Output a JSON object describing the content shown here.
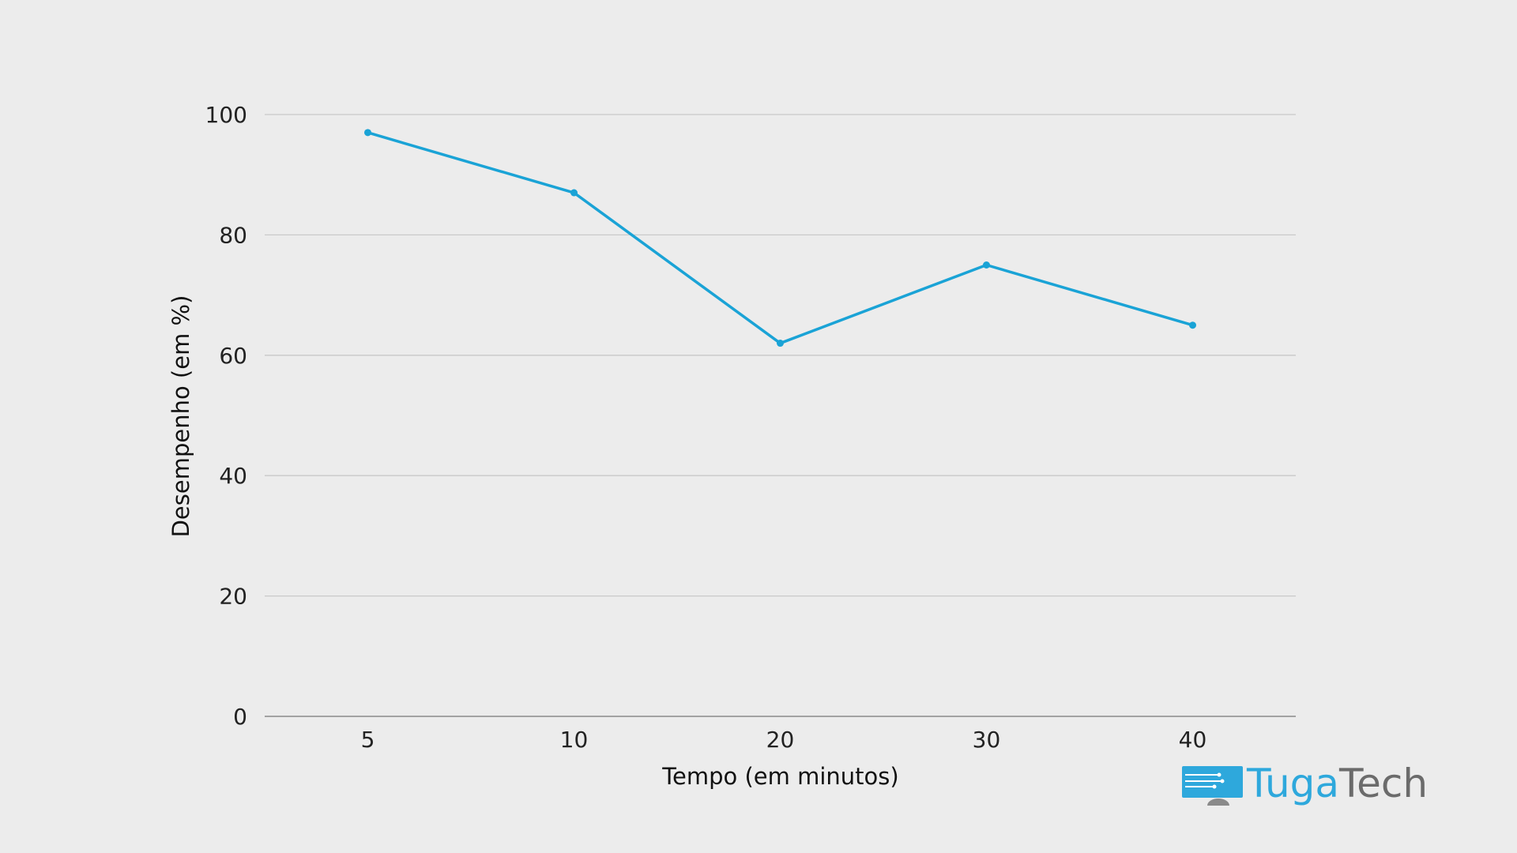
{
  "chart_data": {
    "type": "line",
    "title": "",
    "xlabel": "Tempo (em minutos)",
    "ylabel": "Desempenho (em %)",
    "categories": [
      "5",
      "10",
      "20",
      "30",
      "40"
    ],
    "series": [
      {
        "values": [
          97,
          87,
          62,
          75,
          65
        ]
      }
    ],
    "ylim": [
      0,
      100
    ],
    "yticks": [
      "0",
      "20",
      "40",
      "60",
      "80",
      "100"
    ],
    "grid": true,
    "legend": "none",
    "colors": {
      "line": "#1aa3d6",
      "grid": "#c9c9c9",
      "axis": "#8a8a8a",
      "background": "#ececec"
    }
  },
  "watermark": {
    "part1": "Tuga",
    "part2": "Tech",
    "icon": "monitor-circuit-icon",
    "colors": {
      "part1": "#2ea8dc",
      "part2": "#6b6b6b"
    }
  }
}
